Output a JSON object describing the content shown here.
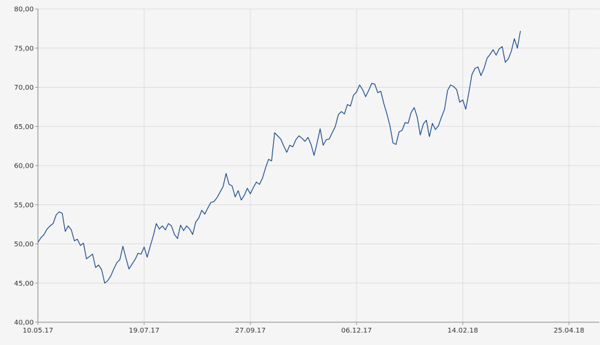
{
  "chart_data": {
    "type": "line",
    "title": "",
    "xlabel": "",
    "ylabel": "",
    "ylim": [
      40,
      80
    ],
    "grid": true,
    "x_range": [
      "10.05.17",
      "15.05.18"
    ],
    "y_ticks": [
      {
        "value": 40,
        "label": "40,00"
      },
      {
        "value": 45,
        "label": "45,00"
      },
      {
        "value": 50,
        "label": "50,00"
      },
      {
        "value": 55,
        "label": "55,00"
      },
      {
        "value": 60,
        "label": "60,00"
      },
      {
        "value": 65,
        "label": "65,00"
      },
      {
        "value": 70,
        "label": "70,00"
      },
      {
        "value": 75,
        "label": "75,00"
      },
      {
        "value": 80,
        "label": "80,00"
      }
    ],
    "x_ticks": [
      {
        "date": "2017-05-10",
        "label": "10.05.17"
      },
      {
        "date": "2017-07-19",
        "label": "19.07.17"
      },
      {
        "date": "2017-09-27",
        "label": "27.09.17"
      },
      {
        "date": "2017-12-06",
        "label": "06.12.17"
      },
      {
        "date": "2018-02-14",
        "label": "14.02.18"
      },
      {
        "date": "2018-04-25",
        "label": "25.04.18"
      }
    ],
    "line_color": "#1f4e8c",
    "grid_color": "#dddddd",
    "series": [
      {
        "points": [
          [
            "2017-05-10",
            50.2
          ],
          [
            "2017-05-12",
            50.8
          ],
          [
            "2017-05-14",
            51.2
          ],
          [
            "2017-05-16",
            51.9
          ],
          [
            "2017-05-18",
            52.3
          ],
          [
            "2017-05-20",
            52.6
          ],
          [
            "2017-05-22",
            53.7
          ],
          [
            "2017-05-24",
            54.1
          ],
          [
            "2017-05-26",
            53.9
          ],
          [
            "2017-05-28",
            51.6
          ],
          [
            "2017-05-30",
            52.3
          ],
          [
            "2017-06-01",
            51.8
          ],
          [
            "2017-06-03",
            50.4
          ],
          [
            "2017-06-05",
            50.6
          ],
          [
            "2017-06-07",
            49.8
          ],
          [
            "2017-06-09",
            50.1
          ],
          [
            "2017-06-11",
            48.1
          ],
          [
            "2017-06-13",
            48.4
          ],
          [
            "2017-06-15",
            48.7
          ],
          [
            "2017-06-17",
            47.0
          ],
          [
            "2017-06-19",
            47.3
          ],
          [
            "2017-06-21",
            46.7
          ],
          [
            "2017-06-23",
            45.0
          ],
          [
            "2017-06-25",
            45.3
          ],
          [
            "2017-06-27",
            45.9
          ],
          [
            "2017-06-29",
            46.8
          ],
          [
            "2017-07-01",
            47.6
          ],
          [
            "2017-07-03",
            48.0
          ],
          [
            "2017-07-05",
            49.7
          ],
          [
            "2017-07-07",
            48.2
          ],
          [
            "2017-07-09",
            46.8
          ],
          [
            "2017-07-11",
            47.4
          ],
          [
            "2017-07-13",
            48.0
          ],
          [
            "2017-07-15",
            48.8
          ],
          [
            "2017-07-17",
            48.7
          ],
          [
            "2017-07-19",
            49.6
          ],
          [
            "2017-07-21",
            48.3
          ],
          [
            "2017-07-23",
            49.7
          ],
          [
            "2017-07-25",
            51.0
          ],
          [
            "2017-07-27",
            52.6
          ],
          [
            "2017-07-29",
            51.9
          ],
          [
            "2017-07-31",
            52.3
          ],
          [
            "2017-08-02",
            51.8
          ],
          [
            "2017-08-04",
            52.6
          ],
          [
            "2017-08-06",
            52.3
          ],
          [
            "2017-08-08",
            51.2
          ],
          [
            "2017-08-10",
            50.7
          ],
          [
            "2017-08-12",
            52.4
          ],
          [
            "2017-08-14",
            51.7
          ],
          [
            "2017-08-16",
            52.3
          ],
          [
            "2017-08-18",
            51.9
          ],
          [
            "2017-08-20",
            51.2
          ],
          [
            "2017-08-22",
            52.8
          ],
          [
            "2017-08-24",
            53.3
          ],
          [
            "2017-08-26",
            54.3
          ],
          [
            "2017-08-28",
            53.8
          ],
          [
            "2017-08-30",
            54.6
          ],
          [
            "2017-09-01",
            55.3
          ],
          [
            "2017-09-03",
            55.4
          ],
          [
            "2017-09-05",
            55.9
          ],
          [
            "2017-09-07",
            56.6
          ],
          [
            "2017-09-09",
            57.3
          ],
          [
            "2017-09-11",
            59.0
          ],
          [
            "2017-09-13",
            57.6
          ],
          [
            "2017-09-15",
            57.4
          ],
          [
            "2017-09-17",
            56.0
          ],
          [
            "2017-09-19",
            56.8
          ],
          [
            "2017-09-21",
            55.6
          ],
          [
            "2017-09-23",
            56.2
          ],
          [
            "2017-09-25",
            57.1
          ],
          [
            "2017-09-27",
            56.4
          ],
          [
            "2017-09-29",
            57.2
          ],
          [
            "2017-10-01",
            57.9
          ],
          [
            "2017-10-03",
            57.6
          ],
          [
            "2017-10-05",
            58.4
          ],
          [
            "2017-10-07",
            59.7
          ],
          [
            "2017-10-09",
            60.8
          ],
          [
            "2017-10-11",
            60.6
          ],
          [
            "2017-10-13",
            64.2
          ],
          [
            "2017-10-15",
            63.8
          ],
          [
            "2017-10-17",
            63.4
          ],
          [
            "2017-10-19",
            62.5
          ],
          [
            "2017-10-21",
            61.7
          ],
          [
            "2017-10-23",
            62.6
          ],
          [
            "2017-10-25",
            62.4
          ],
          [
            "2017-10-27",
            63.3
          ],
          [
            "2017-10-29",
            63.8
          ],
          [
            "2017-10-31",
            63.5
          ],
          [
            "2017-11-02",
            63.1
          ],
          [
            "2017-11-04",
            63.6
          ],
          [
            "2017-11-06",
            62.7
          ],
          [
            "2017-11-08",
            61.3
          ],
          [
            "2017-11-10",
            62.9
          ],
          [
            "2017-11-12",
            64.7
          ],
          [
            "2017-11-14",
            62.6
          ],
          [
            "2017-11-16",
            63.3
          ],
          [
            "2017-11-18",
            63.4
          ],
          [
            "2017-11-20",
            64.2
          ],
          [
            "2017-11-22",
            65.0
          ],
          [
            "2017-11-24",
            66.5
          ],
          [
            "2017-11-26",
            66.9
          ],
          [
            "2017-11-28",
            66.6
          ],
          [
            "2017-11-30",
            67.8
          ],
          [
            "2017-12-02",
            67.6
          ],
          [
            "2017-12-04",
            69.0
          ],
          [
            "2017-12-06",
            69.4
          ],
          [
            "2017-12-08",
            70.3
          ],
          [
            "2017-12-10",
            69.7
          ],
          [
            "2017-12-12",
            68.8
          ],
          [
            "2017-12-14",
            69.6
          ],
          [
            "2017-12-16",
            70.5
          ],
          [
            "2017-12-18",
            70.4
          ],
          [
            "2017-12-20",
            69.3
          ],
          [
            "2017-12-22",
            69.5
          ],
          [
            "2017-12-24",
            67.9
          ],
          [
            "2017-12-26",
            66.6
          ],
          [
            "2017-12-28",
            65.1
          ],
          [
            "2017-12-30",
            62.9
          ],
          [
            "2018-01-01",
            62.7
          ],
          [
            "2018-01-03",
            64.3
          ],
          [
            "2018-01-05",
            64.5
          ],
          [
            "2018-01-07",
            65.5
          ],
          [
            "2018-01-09",
            65.4
          ],
          [
            "2018-01-11",
            66.8
          ],
          [
            "2018-01-13",
            67.4
          ],
          [
            "2018-01-15",
            66.2
          ],
          [
            "2018-01-17",
            63.9
          ],
          [
            "2018-01-19",
            65.3
          ],
          [
            "2018-01-21",
            65.8
          ],
          [
            "2018-01-23",
            63.7
          ],
          [
            "2018-01-25",
            65.4
          ],
          [
            "2018-01-27",
            64.6
          ],
          [
            "2018-01-29",
            65.1
          ],
          [
            "2018-01-31",
            66.2
          ],
          [
            "2018-02-02",
            67.2
          ],
          [
            "2018-02-04",
            69.6
          ],
          [
            "2018-02-06",
            70.3
          ],
          [
            "2018-02-08",
            70.1
          ],
          [
            "2018-02-10",
            69.7
          ],
          [
            "2018-02-12",
            68.1
          ],
          [
            "2018-02-14",
            68.4
          ],
          [
            "2018-02-16",
            67.2
          ],
          [
            "2018-02-18",
            69.3
          ],
          [
            "2018-02-20",
            71.6
          ],
          [
            "2018-02-22",
            72.4
          ],
          [
            "2018-02-24",
            72.6
          ],
          [
            "2018-02-26",
            71.5
          ],
          [
            "2018-02-28",
            72.4
          ],
          [
            "2018-03-02",
            73.7
          ],
          [
            "2018-03-04",
            74.2
          ],
          [
            "2018-03-06",
            74.8
          ],
          [
            "2018-03-08",
            74.1
          ],
          [
            "2018-03-10",
            74.9
          ],
          [
            "2018-03-12",
            75.2
          ],
          [
            "2018-03-14",
            73.2
          ],
          [
            "2018-03-16",
            73.6
          ],
          [
            "2018-03-18",
            74.6
          ],
          [
            "2018-03-20",
            76.2
          ],
          [
            "2018-03-22",
            75.0
          ],
          [
            "2018-03-24",
            77.2
          ]
        ]
      }
    ]
  }
}
